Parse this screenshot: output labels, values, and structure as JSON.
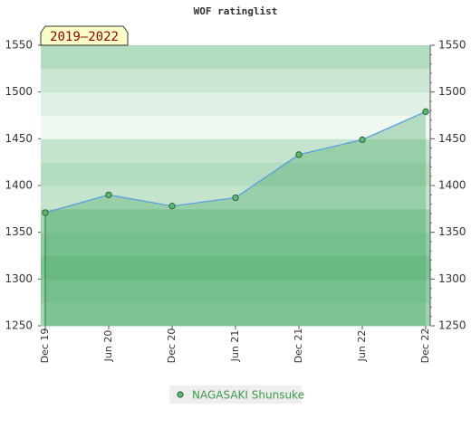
{
  "chart_data": {
    "type": "line",
    "title": "WOF ratinglist",
    "annotation": "2019–2022",
    "categories": [
      "Dec 19",
      "Jun 20",
      "Dec 20",
      "Jun 21",
      "Dec 21",
      "Jun 22",
      "Dec 22"
    ],
    "series": [
      {
        "name": "NAGASAKI Shunsuke",
        "color": "#5cb870",
        "line_color": "#5b9ee0",
        "values": [
          1371,
          1390,
          1378,
          1387,
          1433,
          1449,
          1479
        ]
      }
    ],
    "ylim": [
      1250,
      1550
    ],
    "yticks": [
      1250,
      1300,
      1350,
      1400,
      1450,
      1500,
      1550
    ]
  }
}
